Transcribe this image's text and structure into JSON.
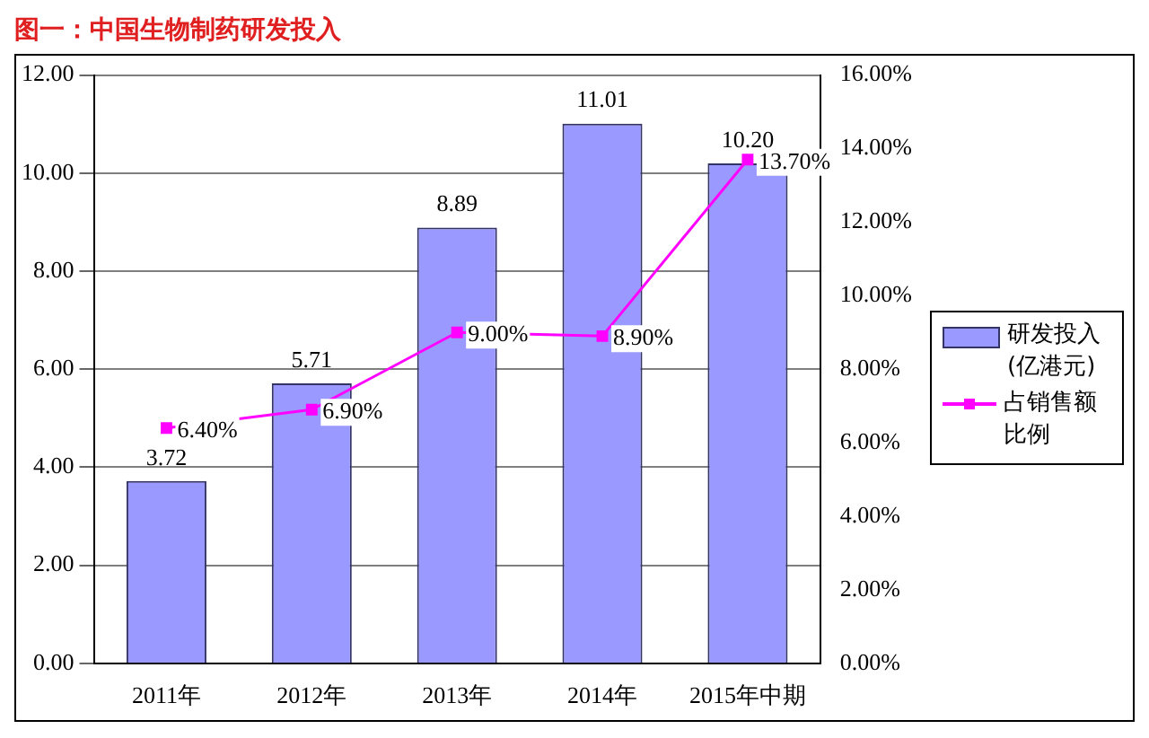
{
  "chart_data": {
    "type": "bar",
    "title": "图一：中国生物制药研发投入",
    "categories": [
      "2011年",
      "2012年",
      "2013年",
      "2014年",
      "2015年中期"
    ],
    "series": [
      {
        "name": "研发投入(亿港元)",
        "color": "#9999ff",
        "values": [
          3.72,
          5.71,
          8.89,
          11.01,
          10.2
        ],
        "value_labels": [
          "3.72",
          "5.71",
          "8.89",
          "11.01",
          "10.20"
        ]
      },
      {
        "name": "占销售额比例",
        "type": "line",
        "axis": "y2",
        "color": "#ff00ff",
        "values": [
          6.4,
          6.9,
          9.0,
          8.9,
          13.7
        ],
        "value_labels": [
          "6.40%",
          "6.90%",
          "9.00%",
          "8.90%",
          "13.70%"
        ]
      }
    ],
    "ylim": [
      0,
      12
    ],
    "yticks": [
      {
        "value": 0,
        "label": "0.00"
      },
      {
        "value": 2,
        "label": "2.00"
      },
      {
        "value": 4,
        "label": "4.00"
      },
      {
        "value": 6,
        "label": "6.00"
      },
      {
        "value": 8,
        "label": "8.00"
      },
      {
        "value": 10,
        "label": "10.00"
      },
      {
        "value": 12,
        "label": "12.00"
      }
    ],
    "y2lim": [
      0,
      16
    ],
    "y2ticks": [
      {
        "value": 0,
        "label": "0.00%"
      },
      {
        "value": 2,
        "label": "2.00%"
      },
      {
        "value": 4,
        "label": "4.00%"
      },
      {
        "value": 6,
        "label": "6.00%"
      },
      {
        "value": 8,
        "label": "8.00%"
      },
      {
        "value": 10,
        "label": "10.00%"
      },
      {
        "value": 12,
        "label": "12.00%"
      },
      {
        "value": 14,
        "label": "14.00%"
      },
      {
        "value": 16,
        "label": "16.00%"
      }
    ],
    "grid": "y",
    "legend": "right",
    "marker": "square",
    "line_style": "solid"
  }
}
